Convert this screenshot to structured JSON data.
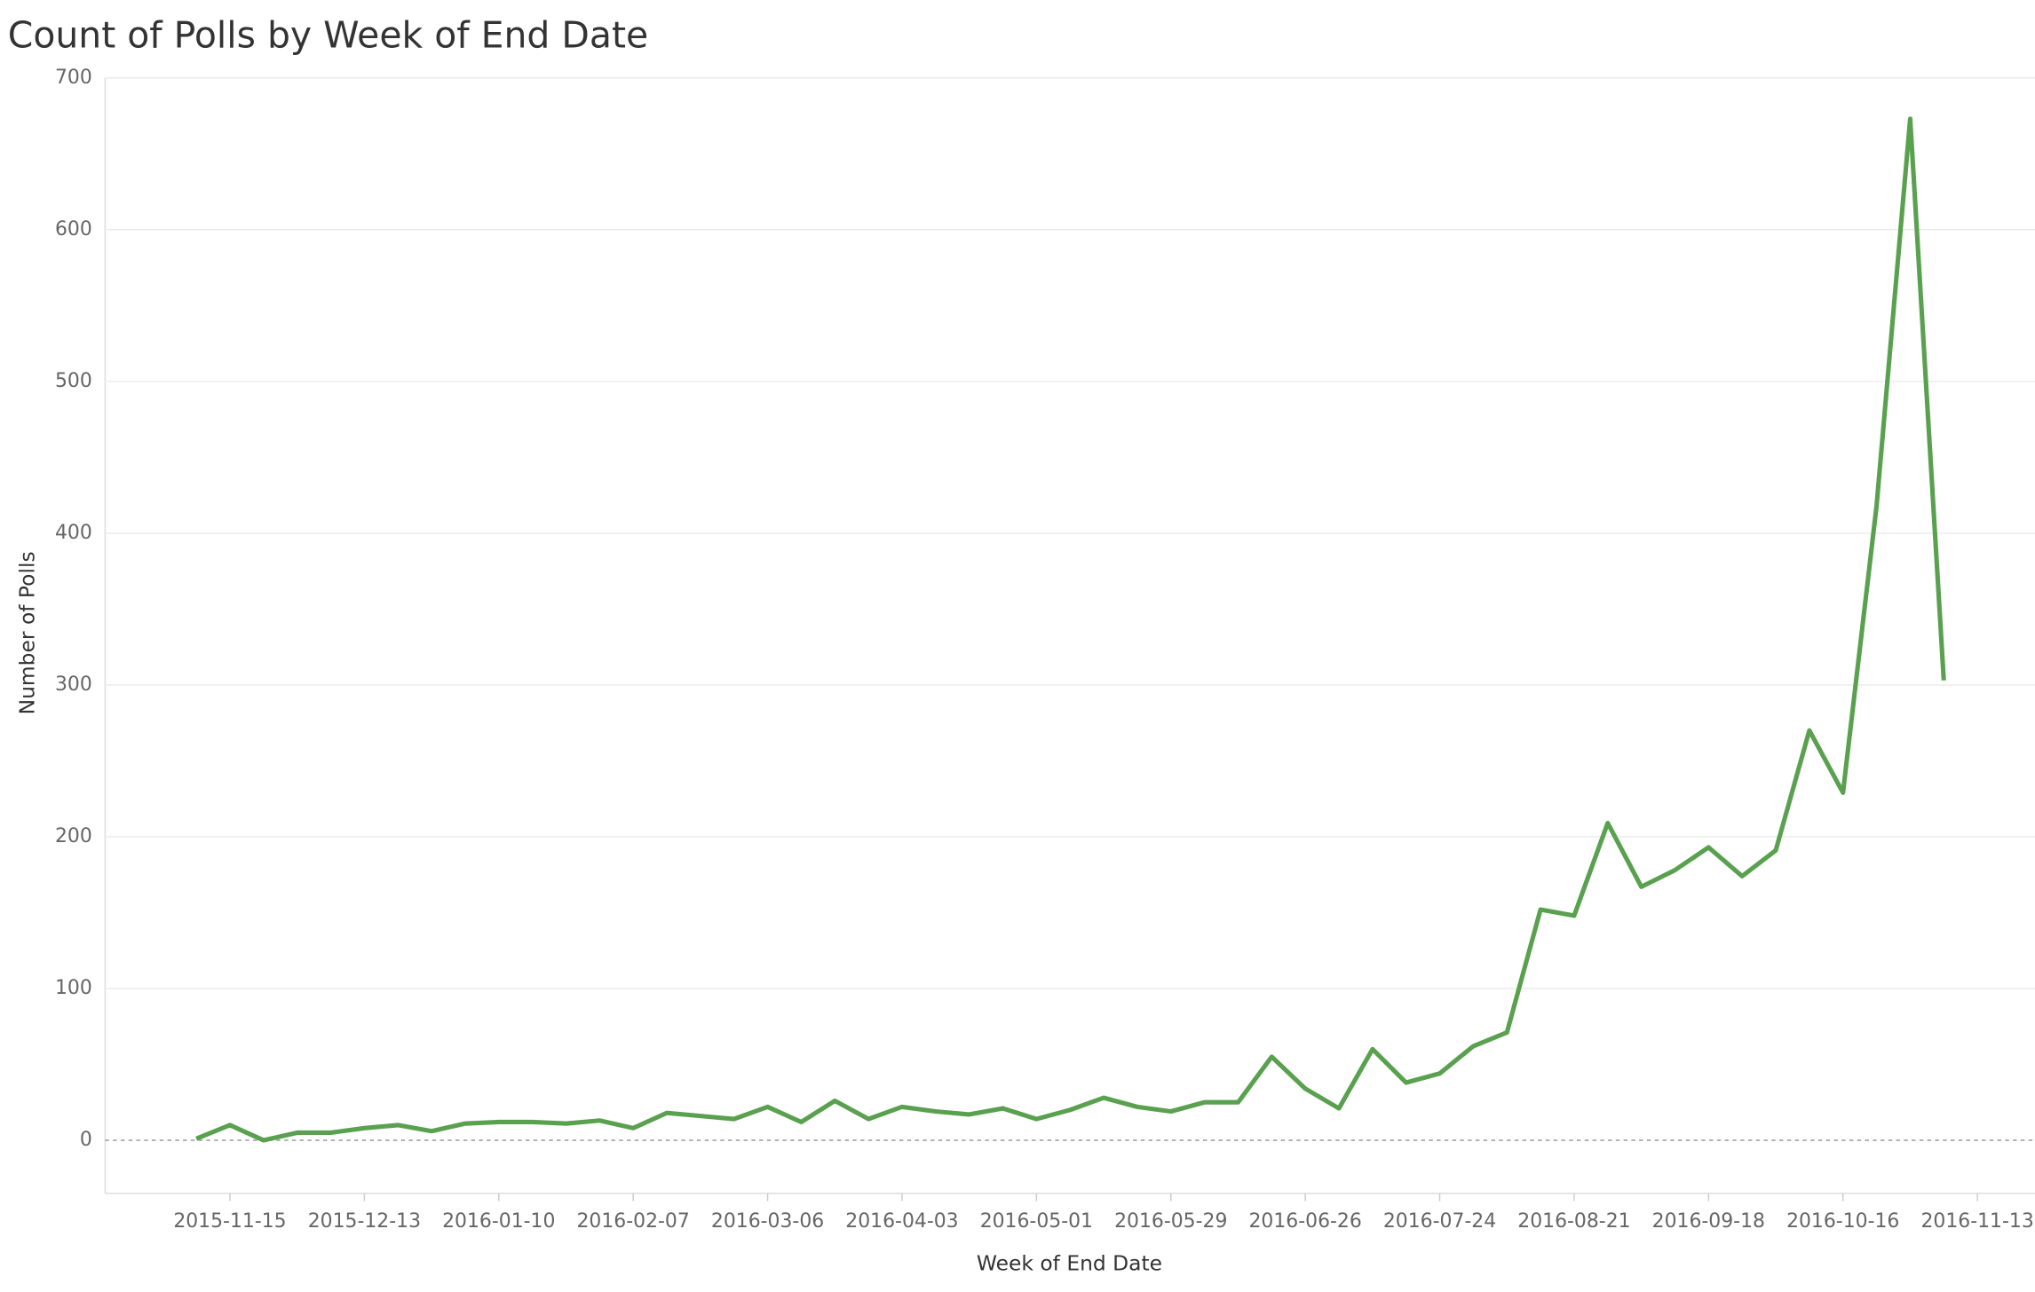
{
  "chart_data": {
    "type": "line",
    "title": "Count of Polls by Week of End Date",
    "x_label": "Week of End Date",
    "y_label": "Number of Polls",
    "x": [
      "2015-11-08",
      "2015-11-15",
      "2015-11-22",
      "2015-11-29",
      "2015-12-06",
      "2015-12-13",
      "2015-12-20",
      "2015-12-27",
      "2016-01-03",
      "2016-01-10",
      "2016-01-17",
      "2016-01-24",
      "2016-01-31",
      "2016-02-07",
      "2016-02-14",
      "2016-02-21",
      "2016-02-28",
      "2016-03-06",
      "2016-03-13",
      "2016-03-20",
      "2016-03-27",
      "2016-04-03",
      "2016-04-10",
      "2016-04-17",
      "2016-04-24",
      "2016-05-01",
      "2016-05-08",
      "2016-05-15",
      "2016-05-22",
      "2016-05-29",
      "2016-06-05",
      "2016-06-12",
      "2016-06-19",
      "2016-06-26",
      "2016-07-03",
      "2016-07-10",
      "2016-07-17",
      "2016-07-24",
      "2016-07-31",
      "2016-08-07",
      "2016-08-14",
      "2016-08-21",
      "2016-08-28",
      "2016-09-04",
      "2016-09-11",
      "2016-09-18",
      "2016-09-25",
      "2016-10-02",
      "2016-10-09",
      "2016-10-16",
      "2016-10-23",
      "2016-10-30",
      "2016-11-06"
    ],
    "series": [
      {
        "name": "Number of Polls",
        "color": "#59a14f",
        "values": [
          1,
          10,
          0,
          5,
          5,
          8,
          10,
          6,
          11,
          12,
          12,
          11,
          13,
          8,
          18,
          16,
          14,
          22,
          12,
          26,
          14,
          22,
          19,
          17,
          21,
          14,
          20,
          28,
          22,
          19,
          25,
          25,
          55,
          34,
          21,
          60,
          38,
          44,
          62,
          71,
          152,
          148,
          209,
          167,
          178,
          193,
          174,
          191,
          270,
          229,
          418,
          673,
          303
        ]
      }
    ],
    "xlim": [
      "2015-10-20",
      "2016-11-25"
    ],
    "xticks": [
      "2015-11-15",
      "2015-12-13",
      "2016-01-10",
      "2016-02-07",
      "2016-03-06",
      "2016-04-03",
      "2016-05-01",
      "2016-05-29",
      "2016-06-26",
      "2016-07-24",
      "2016-08-21",
      "2016-09-18",
      "2016-10-16",
      "2016-11-13"
    ],
    "ylim": [
      -35,
      700
    ],
    "yticks": [
      0,
      100,
      200,
      300,
      400,
      500,
      600,
      700
    ],
    "grid": true
  }
}
